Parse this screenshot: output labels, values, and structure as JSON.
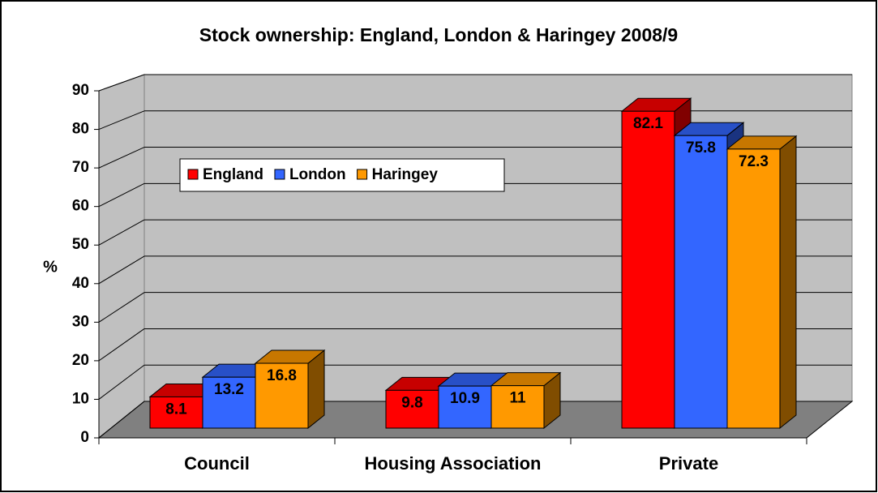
{
  "chart_data": {
    "type": "bar3d",
    "title": "Stock ownership: England, London & Haringey 2008/9",
    "ylabel": "%",
    "categories": [
      "Council",
      "Housing Association",
      "Private"
    ],
    "series": [
      {
        "name": "England",
        "color": "#ff0000",
        "values": [
          8.1,
          9.8,
          82.1
        ]
      },
      {
        "name": "London",
        "color": "#3366ff",
        "values": [
          13.2,
          10.9,
          75.8
        ]
      },
      {
        "name": "Haringey",
        "color": "#ff9900",
        "values": [
          16.8,
          11,
          72.3
        ]
      }
    ],
    "ylim": [
      0,
      90
    ],
    "yticks": [
      0,
      10,
      20,
      30,
      40,
      50,
      60,
      70,
      80,
      90
    ],
    "grid": true,
    "legend": "upper left"
  }
}
